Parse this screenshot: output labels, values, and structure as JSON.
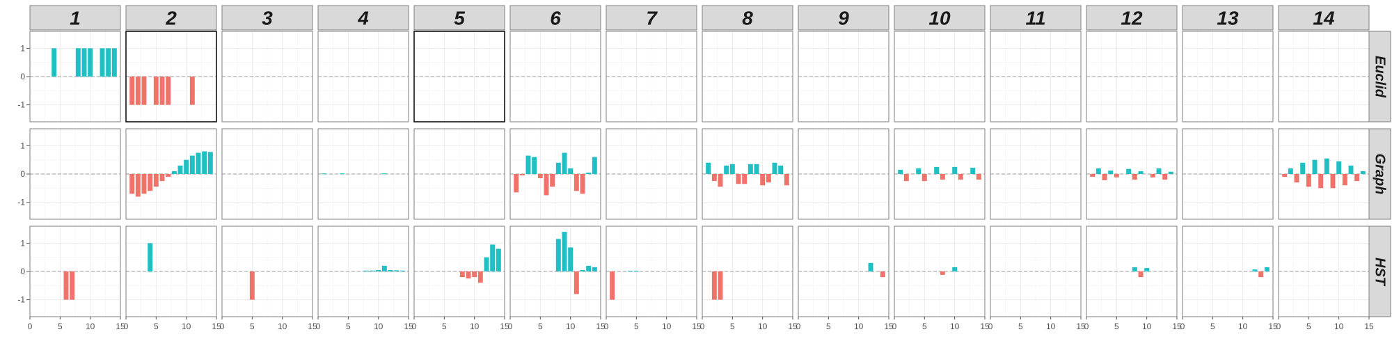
{
  "chart_data": {
    "type": "bar",
    "layout": "facet-grid",
    "title": "",
    "xlabel": "",
    "ylabel": "",
    "columns": [
      "1",
      "2",
      "3",
      "4",
      "5",
      "6",
      "7",
      "8",
      "9",
      "10",
      "11",
      "12",
      "13",
      "14"
    ],
    "rows": [
      "Euclid",
      "Graph",
      "HST"
    ],
    "xlim": [
      0,
      15
    ],
    "ylim": [
      -1.6,
      1.6
    ],
    "x_ticks": [
      0,
      5,
      10,
      15
    ],
    "y_ticks": [
      -1,
      0,
      1
    ],
    "reference_line": 0,
    "grid": true,
    "colors": {
      "positive": "#1fbfc4",
      "negative": "#f0736b",
      "strip_bg": "#d9d9d9",
      "reference": "#9a9a9a"
    },
    "highlighted_panels": [
      {
        "row": "Euclid",
        "col": "2"
      },
      {
        "row": "Euclid",
        "col": "5"
      }
    ],
    "panels": {
      "Euclid": {
        "1": [
          [
            4,
            1
          ],
          [
            8,
            1
          ],
          [
            9,
            1
          ],
          [
            10,
            1
          ],
          [
            12,
            1
          ],
          [
            13,
            1
          ],
          [
            14,
            1
          ]
        ],
        "2": [
          [
            1,
            -1
          ],
          [
            2,
            -1
          ],
          [
            3,
            -1
          ],
          [
            5,
            -1
          ],
          [
            6,
            -1
          ],
          [
            7,
            -1
          ],
          [
            11,
            -1
          ]
        ]
      },
      "Graph": {
        "2": [
          [
            1,
            -0.7
          ],
          [
            2,
            -0.8
          ],
          [
            3,
            -0.7
          ],
          [
            4,
            -0.6
          ],
          [
            5,
            -0.45
          ],
          [
            6,
            -0.25
          ],
          [
            7,
            -0.1
          ],
          [
            8,
            0.1
          ],
          [
            9,
            0.3
          ],
          [
            10,
            0.5
          ],
          [
            11,
            0.65
          ],
          [
            12,
            0.75
          ],
          [
            13,
            0.8
          ],
          [
            14,
            0.78
          ]
        ],
        "4": [
          [
            1,
            0.02
          ],
          [
            4,
            0.02
          ],
          [
            11,
            0.02
          ]
        ],
        "6": [
          [
            1,
            -0.65
          ],
          [
            2,
            -0.05
          ],
          [
            3,
            0.65
          ],
          [
            4,
            0.6
          ],
          [
            5,
            -0.15
          ],
          [
            6,
            -0.75
          ],
          [
            7,
            -0.45
          ],
          [
            8,
            0.4
          ],
          [
            9,
            0.75
          ],
          [
            10,
            0.2
          ],
          [
            11,
            -0.6
          ],
          [
            12,
            -0.7
          ],
          [
            13,
            0.05
          ],
          [
            14,
            0.6
          ]
        ],
        "8": [
          [
            1,
            0.4
          ],
          [
            2,
            -0.25
          ],
          [
            3,
            -0.45
          ],
          [
            4,
            0.3
          ],
          [
            5,
            0.35
          ],
          [
            6,
            -0.35
          ],
          [
            7,
            -0.35
          ],
          [
            8,
            0.35
          ],
          [
            9,
            0.35
          ],
          [
            10,
            -0.4
          ],
          [
            11,
            -0.3
          ],
          [
            12,
            0.4
          ],
          [
            13,
            0.3
          ],
          [
            14,
            -0.4
          ]
        ],
        "10": [
          [
            1,
            0.15
          ],
          [
            2,
            -0.25
          ],
          [
            4,
            0.2
          ],
          [
            5,
            -0.25
          ],
          [
            7,
            0.25
          ],
          [
            8,
            -0.2
          ],
          [
            10,
            0.25
          ],
          [
            11,
            -0.2
          ],
          [
            13,
            0.22
          ],
          [
            14,
            -0.2
          ]
        ],
        "12": [
          [
            1,
            -0.1
          ],
          [
            2,
            0.2
          ],
          [
            3,
            -0.22
          ],
          [
            4,
            0.12
          ],
          [
            5,
            -0.12
          ],
          [
            7,
            0.18
          ],
          [
            8,
            -0.2
          ],
          [
            9,
            0.1
          ],
          [
            11,
            -0.12
          ],
          [
            12,
            0.2
          ],
          [
            13,
            -0.2
          ],
          [
            14,
            0.08
          ]
        ],
        "14": [
          [
            1,
            -0.1
          ],
          [
            2,
            0.2
          ],
          [
            3,
            -0.3
          ],
          [
            4,
            0.4
          ],
          [
            5,
            -0.45
          ],
          [
            6,
            0.5
          ],
          [
            7,
            -0.5
          ],
          [
            8,
            0.55
          ],
          [
            9,
            -0.5
          ],
          [
            10,
            0.45
          ],
          [
            11,
            -0.4
          ],
          [
            12,
            0.3
          ],
          [
            13,
            -0.25
          ],
          [
            14,
            0.1
          ]
        ]
      },
      "HST": {
        "1": [
          [
            6,
            -1
          ],
          [
            7,
            -1
          ]
        ],
        "2": [
          [
            4,
            1
          ]
        ],
        "3": [
          [
            5,
            -1
          ]
        ],
        "4": [
          [
            8,
            0.03
          ],
          [
            9,
            0.03
          ],
          [
            10,
            0.05
          ],
          [
            11,
            0.2
          ],
          [
            12,
            0.05
          ],
          [
            13,
            0.04
          ],
          [
            14,
            0.03
          ]
        ],
        "5": [
          [
            8,
            -0.2
          ],
          [
            9,
            -0.25
          ],
          [
            10,
            -0.2
          ],
          [
            11,
            -0.4
          ],
          [
            12,
            0.5
          ],
          [
            13,
            0.95
          ],
          [
            14,
            0.8
          ]
        ],
        "6": [
          [
            8,
            1.15
          ],
          [
            9,
            1.4
          ],
          [
            10,
            0.85
          ],
          [
            11,
            -0.8
          ],
          [
            12,
            0.05
          ],
          [
            13,
            0.2
          ],
          [
            14,
            0.15
          ]
        ],
        "7": [
          [
            1,
            -1
          ],
          [
            4,
            0.02
          ],
          [
            5,
            0.02
          ]
        ],
        "8": [
          [
            2,
            -1
          ],
          [
            3,
            -1
          ]
        ],
        "9": [
          [
            12,
            0.3
          ],
          [
            14,
            -0.2
          ]
        ],
        "10": [
          [
            8,
            -0.12
          ],
          [
            10,
            0.15
          ]
        ],
        "12": [
          [
            8,
            0.15
          ],
          [
            9,
            -0.2
          ],
          [
            10,
            0.12
          ]
        ],
        "13": [
          [
            12,
            0.07
          ],
          [
            13,
            -0.2
          ],
          [
            14,
            0.15
          ]
        ]
      }
    }
  }
}
